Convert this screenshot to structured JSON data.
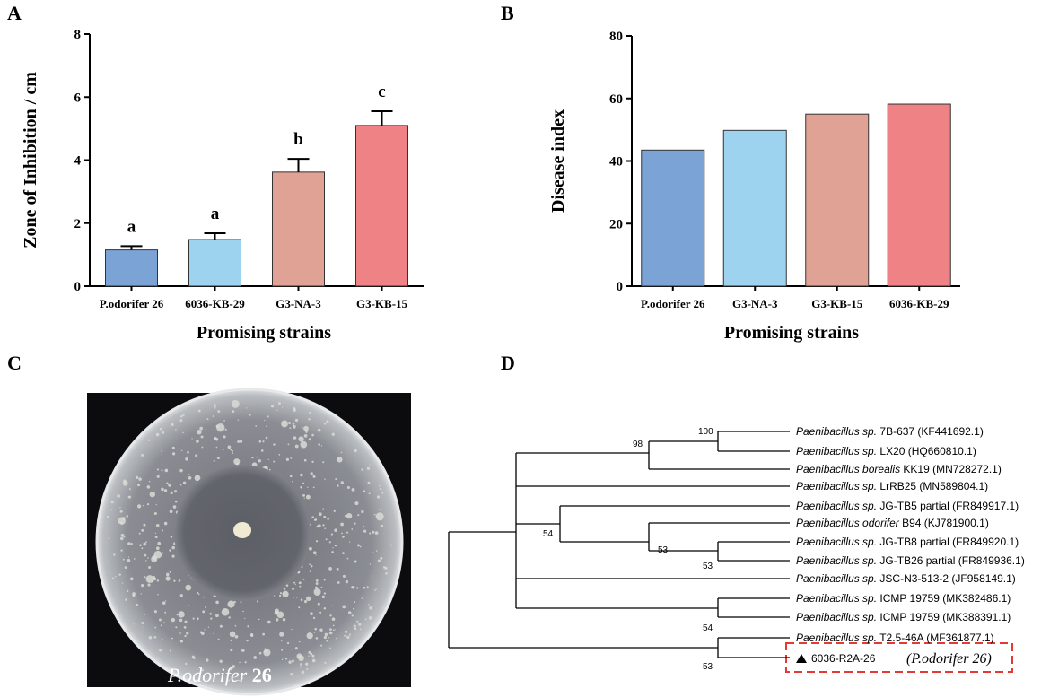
{
  "panel_labels": [
    "A",
    "B",
    "C",
    "D"
  ],
  "chart_data": [
    {
      "type": "bar",
      "ylabel": "Zone of Inhibition / cm",
      "xlabel": "Promising strains",
      "categories": [
        "P.odorifer 26",
        "6036-KB-29",
        "G3-NA-3",
        "G3-KB-15"
      ],
      "values": [
        1.15,
        1.48,
        3.62,
        5.1
      ],
      "errors": [
        0.12,
        0.2,
        0.42,
        0.45
      ],
      "letters": [
        "a",
        "a",
        "b",
        "c"
      ],
      "colors": [
        "#7ba3d6",
        "#9dd3ee",
        "#e0a295",
        "#ee8285"
      ],
      "ylim": [
        0,
        8
      ],
      "yticks": [
        0,
        2,
        4,
        6,
        8
      ]
    },
    {
      "type": "bar",
      "ylabel": "Disease index",
      "xlabel": "Promising strains",
      "categories": [
        "P.odorifer 26",
        "G3-NA-3",
        "G3-KB-15",
        "6036-KB-29"
      ],
      "values": [
        43.5,
        49.8,
        55,
        58.2
      ],
      "colors": [
        "#7ba3d6",
        "#9dd3ee",
        "#e0a295",
        "#ee8285"
      ],
      "ylim": [
        0,
        80
      ],
      "yticks": [
        0,
        20,
        40,
        60,
        80
      ]
    }
  ],
  "photo": {
    "caption_italic": "P.odorifer",
    "caption_bold": "26"
  },
  "tree": {
    "leaves": [
      {
        "taxon": "Paenibacillus sp.",
        "label": "7B-637 (KF441692.1)"
      },
      {
        "taxon": "Paenibacillus sp.",
        "label": "LX20 (HQ660810.1)"
      },
      {
        "taxon": "Paenibacillus borealis",
        "label": "KK19 (MN728272.1)"
      },
      {
        "taxon": "Paenibacillus sp.",
        "label": "LrRB25 (MN589804.1)"
      },
      {
        "taxon": "Paenibacillus sp.",
        "label": "JG-TB5 partial (FR849917.1)"
      },
      {
        "taxon": "Paenibacillus odorifer",
        "label": "B94 (KJ781900.1)"
      },
      {
        "taxon": "Paenibacillus sp.",
        "label": "JG-TB8 partial (FR849920.1)"
      },
      {
        "taxon": "Paenibacillus sp.",
        "label": "JG-TB26 partial (FR849936.1)"
      },
      {
        "taxon": "Paenibacillus sp.",
        "label": "JSC-N3-513-2 (JF958149.1)"
      },
      {
        "taxon": "Paenibacillus sp.",
        "label": "ICMP 19759 (MK382486.1)"
      },
      {
        "taxon": "Paenibacillus sp.",
        "label": "ICMP 19759 (MK388391.1)"
      },
      {
        "taxon": "Paenibacillus sp.",
        "label": "T2.5-46A (MF361877.1)"
      }
    ],
    "query": {
      "label": "6036-R2A-26",
      "note": "(P.odorifer 26)"
    },
    "bootstraps": [
      "100",
      "98",
      "54",
      "53",
      "53",
      "54",
      "53"
    ]
  }
}
